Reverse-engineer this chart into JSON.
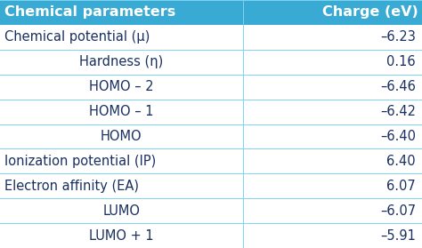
{
  "header": [
    "Chemical parameters",
    "Charge (eV)"
  ],
  "rows": [
    [
      "Chemical potential (μ)",
      "–6.23"
    ],
    [
      "Hardness (η)",
      "0.16"
    ],
    [
      "HOMO – 2",
      "–6.46"
    ],
    [
      "HOMO – 1",
      "–6.42"
    ],
    [
      "HOMO",
      "–6.40"
    ],
    [
      "Ionization potential (IP)",
      "6.40"
    ],
    [
      "Electron affinity (EA)",
      "6.07"
    ],
    [
      "LUMO",
      "–6.07"
    ],
    [
      "LUMO + 1",
      "–5.91"
    ]
  ],
  "header_bg": "#39aad4",
  "header_text_color": "#ffffff",
  "row_line_color": "#7dd4f0",
  "col_divider_color": "#7dd4f0",
  "text_color": "#1a3060",
  "bg_color": "#ffffff",
  "col_split": 0.575,
  "header_fontsize": 11.5,
  "row_fontsize": 10.5
}
